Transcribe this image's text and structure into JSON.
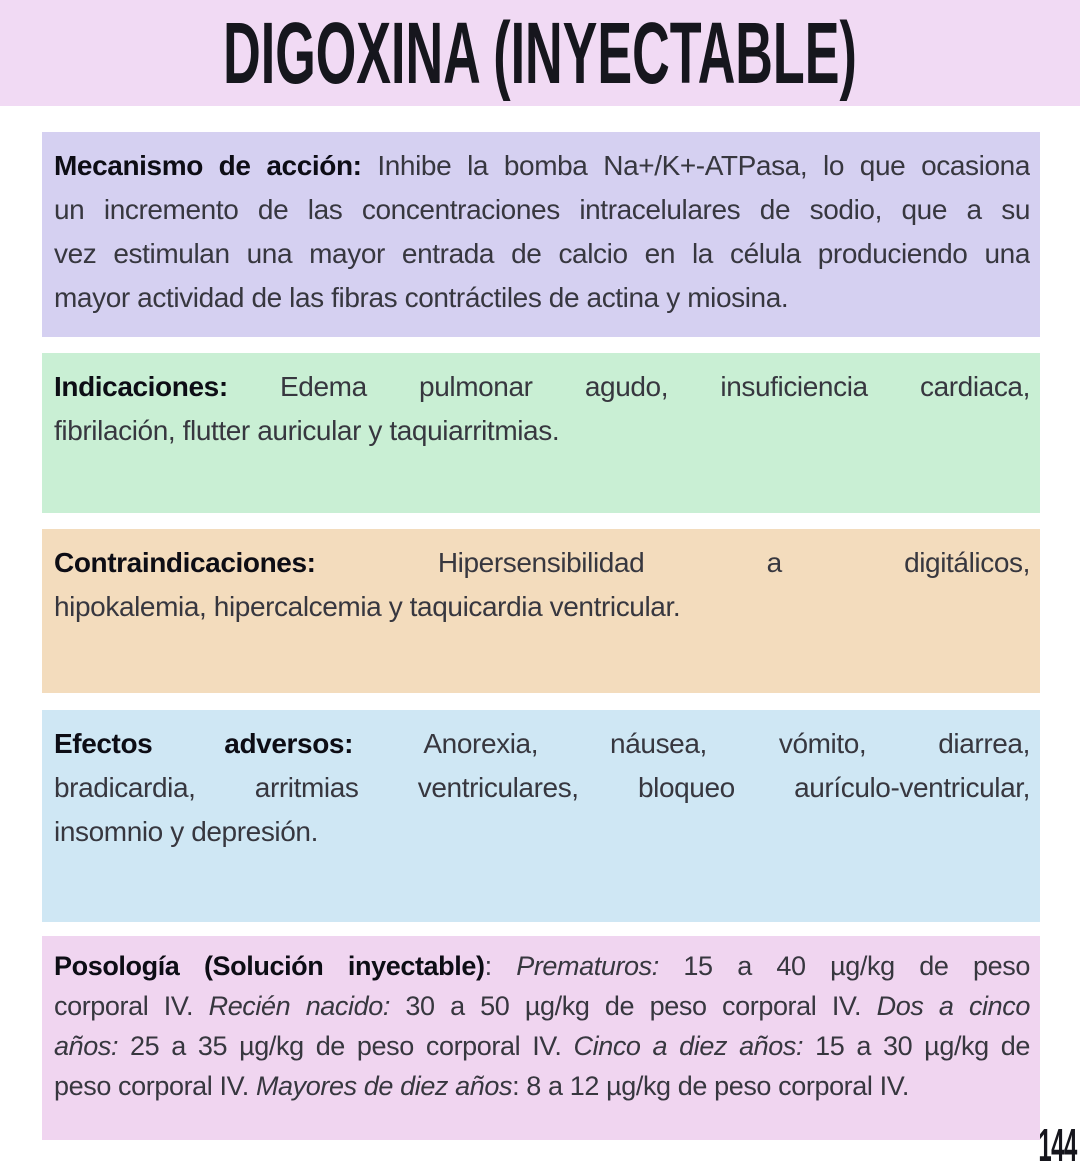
{
  "header": {
    "title": "DIGOXINA (INYECTABLE)",
    "bg": "#F1DAF4"
  },
  "footer": {
    "page_number": "144"
  },
  "text_colors": {
    "title": "#16161d",
    "body": "#37373f",
    "bold": "#0d0d15"
  },
  "sections": [
    {
      "name": "mecanismo-de-accion",
      "bg": "#D5D0F1",
      "lines": [
        [
          {
            "s": "b",
            "t": "Mecanismo de acción:"
          },
          {
            "s": "n",
            "t": " Inhibe la bomba Na+/K+-ATPasa, lo que ocasiona"
          }
        ],
        [
          {
            "s": "n",
            "t": "un incremento de las concentraciones intracelulares de sodio, que a su"
          }
        ],
        [
          {
            "s": "n",
            "t": "vez estimulan una mayor entrada de calcio en la célula produciendo una"
          }
        ],
        [
          {
            "s": "n",
            "t": "mayor actividad de las fibras contráctiles de actina y miosina."
          }
        ]
      ]
    },
    {
      "name": "indicaciones",
      "bg": "#C9EFD4",
      "lines": [
        [
          {
            "s": "b",
            "t": "Indicaciones:"
          },
          {
            "s": "n",
            "t": " Edema pulmonar agudo, insuficiencia cardiaca,"
          }
        ],
        [
          {
            "s": "n",
            "t": "fibrilación, flutter auricular y taquiarritmias."
          }
        ]
      ]
    },
    {
      "name": "contraindicaciones",
      "bg": "#F3DCBD",
      "lines": [
        [
          {
            "s": "b",
            "t": "Contraindicaciones:"
          },
          {
            "s": "n",
            "t": " Hipersensibilidad a digitálicos,"
          }
        ],
        [
          {
            "s": "n",
            "t": "hipokalemia, hipercalcemia y taquicardia ventricular."
          }
        ]
      ]
    },
    {
      "name": "efectos-adversos",
      "bg": "#CFE7F4",
      "lines": [
        [
          {
            "s": "b",
            "t": "Efectos adversos:"
          },
          {
            "s": "n",
            "t": " Anorexia, náusea, vómito, diarrea,"
          }
        ],
        [
          {
            "s": "n",
            "t": "bradicardia, arritmias ventriculares, bloqueo aurículo-ventricular,"
          }
        ],
        [
          {
            "s": "n",
            "t": "insomnio y depresión."
          }
        ]
      ]
    },
    {
      "name": "posologia",
      "bg": "#F0D5F0",
      "lines": [
        [
          {
            "s": "b",
            "t": "Posología (Solución inyectable)"
          },
          {
            "s": "n",
            "t": ": "
          },
          {
            "s": "i",
            "t": "Prematuros:"
          },
          {
            "s": "n",
            "t": " 15 a 40 µg/kg de peso"
          }
        ],
        [
          {
            "s": "n",
            "t": "corporal IV. "
          },
          {
            "s": "i",
            "t": "Recién nacido:"
          },
          {
            "s": "n",
            "t": " 30 a 50 µg/kg de peso corporal IV. "
          },
          {
            "s": "i",
            "t": "Dos a cinco"
          }
        ],
        [
          {
            "s": "i",
            "t": "años:"
          },
          {
            "s": "n",
            "t": " 25 a 35 µg/kg de peso corporal IV. "
          },
          {
            "s": "i",
            "t": "Cinco a diez años:"
          },
          {
            "s": "n",
            "t": " 15 a 30 µg/kg de"
          }
        ],
        [
          {
            "s": "n",
            "t": "peso corporal IV. "
          },
          {
            "s": "i",
            "t": "Mayores de diez años"
          },
          {
            "s": "n",
            "t": ": 8 a 12 µg/kg de peso corporal IV."
          }
        ]
      ]
    }
  ]
}
